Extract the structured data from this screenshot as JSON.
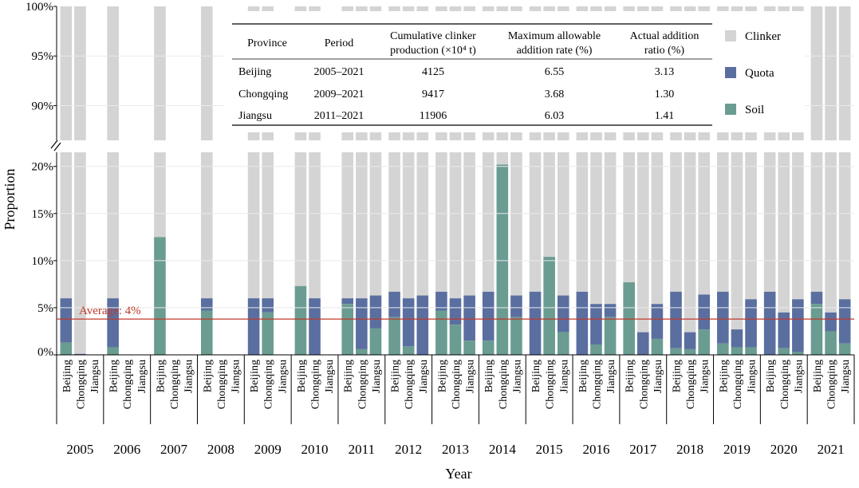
{
  "chart_data": {
    "type": "bar",
    "stacked": true,
    "broken_y_axis": true,
    "xlabel": "Year",
    "ylabel": "Proportion",
    "y_ticks_upper": [
      "100%",
      "95%",
      "90%"
    ],
    "y_ticks_lower": [
      "20%",
      "15%",
      "10%",
      "5%",
      "0%"
    ],
    "upper_range": [
      86.5,
      100
    ],
    "lower_range": [
      0,
      21.5
    ],
    "legend_position": "top-right",
    "series": [
      {
        "name": "Clinker",
        "color": "#d4d4d4"
      },
      {
        "name": "Quota",
        "color": "#5a6fa0"
      },
      {
        "name": "Soil",
        "color": "#6a9c92"
      }
    ],
    "average_line": {
      "value": 3.8,
      "label": "Average: 4%",
      "color": "#c0392b"
    },
    "groups": [
      {
        "year": "2005",
        "bars": [
          {
            "province": "Beijing",
            "soil": 1.3,
            "quota": 4.7
          },
          {
            "province": "Chongqing",
            "soil": 0,
            "quota": 0.1
          },
          {
            "province": "Jiangsu",
            "soil": 0,
            "quota": 0
          }
        ]
      },
      {
        "year": "2006",
        "bars": [
          {
            "province": "Beijing",
            "soil": 0.8,
            "quota": 5.2
          },
          {
            "province": "Chongqing",
            "soil": 0,
            "quota": 0
          },
          {
            "province": "Jiangsu",
            "soil": 0,
            "quota": 0
          }
        ]
      },
      {
        "year": "2007",
        "bars": [
          {
            "province": "Beijing",
            "soil": 12.5,
            "quota": 0
          },
          {
            "province": "Chongqing",
            "soil": 0,
            "quota": 0
          },
          {
            "province": "Jiangsu",
            "soil": 0,
            "quota": 0
          }
        ]
      },
      {
        "year": "2008",
        "bars": [
          {
            "province": "Beijing",
            "soil": 4.7,
            "quota": 1.3
          },
          {
            "province": "Chongqing",
            "soil": 0,
            "quota": 0
          },
          {
            "province": "Jiangsu",
            "soil": 0,
            "quota": 0
          }
        ]
      },
      {
        "year": "2009",
        "bars": [
          {
            "province": "Beijing",
            "soil": 0,
            "quota": 6.0
          },
          {
            "province": "Chongqing",
            "soil": 4.5,
            "quota": 1.5
          },
          {
            "province": "Jiangsu",
            "soil": 0,
            "quota": 0
          }
        ]
      },
      {
        "year": "2010",
        "bars": [
          {
            "province": "Beijing",
            "soil": 7.3,
            "quota": 0
          },
          {
            "province": "Chongqing",
            "soil": 0,
            "quota": 6.0
          },
          {
            "province": "Jiangsu",
            "soil": 0,
            "quota": 0
          }
        ]
      },
      {
        "year": "2011",
        "bars": [
          {
            "province": "Beijing",
            "soil": 5.4,
            "quota": 0.6
          },
          {
            "province": "Chongqing",
            "soil": 0.6,
            "quota": 5.4
          },
          {
            "province": "Jiangsu",
            "soil": 2.8,
            "quota": 3.5
          }
        ]
      },
      {
        "year": "2012",
        "bars": [
          {
            "province": "Beijing",
            "soil": 4.0,
            "quota": 2.7
          },
          {
            "province": "Chongqing",
            "soil": 0.9,
            "quota": 5.1
          },
          {
            "province": "Jiangsu",
            "soil": 0,
            "quota": 6.3
          }
        ]
      },
      {
        "year": "2013",
        "bars": [
          {
            "province": "Beijing",
            "soil": 4.7,
            "quota": 2.0
          },
          {
            "province": "Chongqing",
            "soil": 3.2,
            "quota": 2.8
          },
          {
            "province": "Jiangsu",
            "soil": 1.5,
            "quota": 4.8
          }
        ]
      },
      {
        "year": "2014",
        "bars": [
          {
            "province": "Beijing",
            "soil": 1.5,
            "quota": 5.2
          },
          {
            "province": "Chongqing",
            "soil": 20.2,
            "quota": 0
          },
          {
            "province": "Jiangsu",
            "soil": 4.0,
            "quota": 2.3
          }
        ]
      },
      {
        "year": "2015",
        "bars": [
          {
            "province": "Beijing",
            "soil": 0,
            "quota": 6.7
          },
          {
            "province": "Chongqing",
            "soil": 10.4,
            "quota": 0
          },
          {
            "province": "Jiangsu",
            "soil": 2.4,
            "quota": 3.9
          }
        ]
      },
      {
        "year": "2016",
        "bars": [
          {
            "province": "Beijing",
            "soil": 0,
            "quota": 6.7
          },
          {
            "province": "Chongqing",
            "soil": 1.1,
            "quota": 4.3
          },
          {
            "province": "Jiangsu",
            "soil": 4.0,
            "quota": 1.4
          }
        ]
      },
      {
        "year": "2017",
        "bars": [
          {
            "province": "Beijing",
            "soil": 7.7,
            "quota": 0
          },
          {
            "province": "Chongqing",
            "soil": 0,
            "quota": 2.4
          },
          {
            "province": "Jiangsu",
            "soil": 1.7,
            "quota": 3.7
          }
        ]
      },
      {
        "year": "2018",
        "bars": [
          {
            "province": "Beijing",
            "soil": 0.7,
            "quota": 6.0
          },
          {
            "province": "Chongqing",
            "soil": 0.6,
            "quota": 1.8
          },
          {
            "province": "Jiangsu",
            "soil": 2.7,
            "quota": 3.7
          }
        ]
      },
      {
        "year": "2019",
        "bars": [
          {
            "province": "Beijing",
            "soil": 1.2,
            "quota": 5.5
          },
          {
            "province": "Chongqing",
            "soil": 0.8,
            "quota": 1.9
          },
          {
            "province": "Jiangsu",
            "soil": 0.8,
            "quota": 5.1
          }
        ]
      },
      {
        "year": "2020",
        "bars": [
          {
            "province": "Beijing",
            "soil": 0,
            "quota": 6.7
          },
          {
            "province": "Chongqing",
            "soil": 0.7,
            "quota": 3.8
          },
          {
            "province": "Jiangsu",
            "soil": 0.3,
            "quota": 5.6
          }
        ]
      },
      {
        "year": "2021",
        "bars": [
          {
            "province": "Beijing",
            "soil": 5.4,
            "quota": 1.3
          },
          {
            "province": "Chongqing",
            "soil": 2.5,
            "quota": 2.0
          },
          {
            "province": "Jiangsu",
            "soil": 1.2,
            "quota": 4.7
          }
        ]
      }
    ],
    "table": {
      "headers": [
        "Province",
        "Period",
        "Cumulative clinker production (×10⁴ t)",
        "Maximum allowable addition rate (%)",
        "Actual addition ratio (%)"
      ],
      "header_lines": [
        [
          "Province"
        ],
        [
          "Period"
        ],
        [
          "Cumulative clinker",
          "production (×10⁴ t)"
        ],
        [
          "Maximum allowable",
          "addition rate (%)"
        ],
        [
          "Actual addition",
          "ratio (%)"
        ]
      ],
      "rows": [
        [
          "Beijing",
          "2005–2021",
          "4125",
          "6.55",
          "3.13"
        ],
        [
          "Chongqing",
          "2009–2021",
          "9417",
          "3.68",
          "1.30"
        ],
        [
          "Jiangsu",
          "2011–2021",
          "11906",
          "6.03",
          "1.41"
        ]
      ]
    }
  }
}
